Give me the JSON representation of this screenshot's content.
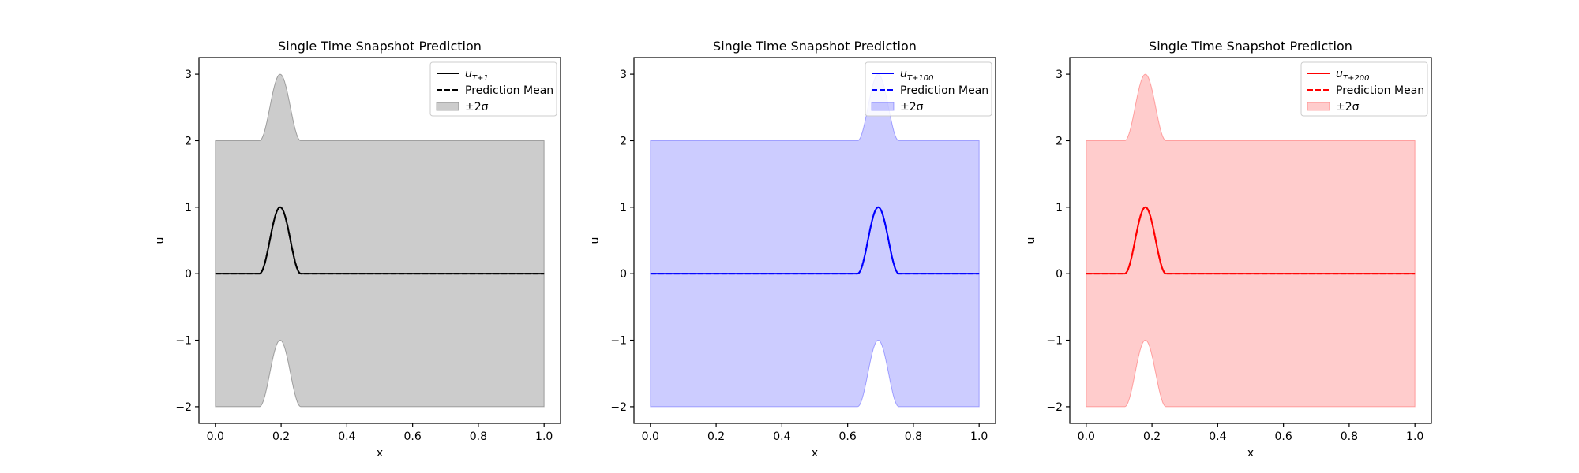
{
  "chart_data": [
    {
      "type": "line",
      "title": "Single Time Snapshot Prediction",
      "xlabel": "x",
      "ylabel": "u",
      "xlim": [
        -0.05,
        1.05
      ],
      "ylim": [
        -2.25,
        3.25
      ],
      "xticks": [
        "0.0",
        "0.2",
        "0.4",
        "0.6",
        "0.8",
        "1.0"
      ],
      "yticks": [
        "−2",
        "−1",
        "0",
        "1",
        "2",
        "3"
      ],
      "color": "#000000",
      "band_color": "#000000",
      "pulse": {
        "center": 0.197,
        "half_width": 0.063,
        "amplitude": 1.0
      },
      "band_half_width": 2.0,
      "legend_position": "upper right",
      "legend": [
        {
          "kind": "truth",
          "label_base": "u",
          "label_sub": "T+1"
        },
        {
          "kind": "mean",
          "label": "Prediction Mean"
        },
        {
          "kind": "band",
          "label": "±2σ"
        }
      ]
    },
    {
      "type": "line",
      "title": "Single Time Snapshot Prediction",
      "xlabel": "x",
      "ylabel": "u",
      "xlim": [
        -0.05,
        1.05
      ],
      "ylim": [
        -2.25,
        3.25
      ],
      "xticks": [
        "0.0",
        "0.2",
        "0.4",
        "0.6",
        "0.8",
        "1.0"
      ],
      "yticks": [
        "−2",
        "−1",
        "0",
        "1",
        "2",
        "3"
      ],
      "color": "#0000ff",
      "band_color": "#0000ff",
      "pulse": {
        "center": 0.693,
        "half_width": 0.063,
        "amplitude": 1.0
      },
      "band_half_width": 2.0,
      "legend_position": "upper right",
      "legend": [
        {
          "kind": "truth",
          "label_base": "u",
          "label_sub": "T+100"
        },
        {
          "kind": "mean",
          "label": "Prediction Mean"
        },
        {
          "kind": "band",
          "label": "±2σ"
        }
      ]
    },
    {
      "type": "line",
      "title": "Single Time Snapshot Prediction",
      "xlabel": "x",
      "ylabel": "u",
      "xlim": [
        -0.05,
        1.05
      ],
      "ylim": [
        -2.25,
        3.25
      ],
      "xticks": [
        "0.0",
        "0.2",
        "0.4",
        "0.6",
        "0.8",
        "1.0"
      ],
      "yticks": [
        "−2",
        "−1",
        "0",
        "1",
        "2",
        "3"
      ],
      "color": "#ff0000",
      "band_color": "#ff0000",
      "pulse": {
        "center": 0.18,
        "half_width": 0.063,
        "amplitude": 1.0
      },
      "band_half_width": 2.0,
      "legend_position": "upper right",
      "legend": [
        {
          "kind": "truth",
          "label_base": "u",
          "label_sub": "T+200"
        },
        {
          "kind": "mean",
          "label": "Prediction Mean"
        },
        {
          "kind": "band",
          "label": "±2σ"
        }
      ]
    }
  ]
}
